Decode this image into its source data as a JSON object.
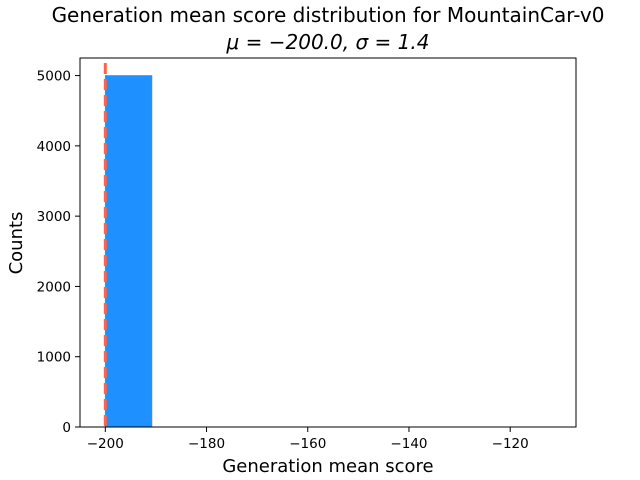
{
  "chart_data": {
    "type": "bar",
    "title": "Generation mean score distribution for MountainCar-v0",
    "subtitle": "μ = −200.0, σ = 1.4",
    "xlabel": "Generation mean score",
    "ylabel": "Counts",
    "xlim": [
      -205,
      -107
    ],
    "ylim": [
      0,
      5250
    ],
    "x_ticks": [
      -200,
      -180,
      -160,
      -140,
      -120
    ],
    "x_tick_labels": [
      "−200",
      "−180",
      "−160",
      "−140",
      "−120"
    ],
    "y_ticks": [
      0,
      1000,
      2000,
      3000,
      4000,
      5000
    ],
    "y_tick_labels": [
      "0",
      "1000",
      "2000",
      "3000",
      "4000",
      "5000"
    ],
    "bins": [
      {
        "start": -200,
        "end": -190.8,
        "count": 5000
      },
      {
        "start": -190.8,
        "end": -181.6,
        "count": 0
      },
      {
        "start": -181.6,
        "end": -172.4,
        "count": 0
      },
      {
        "start": -172.4,
        "end": -163.2,
        "count": 0
      },
      {
        "start": -163.2,
        "end": -154.0,
        "count": 0
      },
      {
        "start": -154.0,
        "end": -144.8,
        "count": 0
      },
      {
        "start": -144.8,
        "end": -135.6,
        "count": 0
      },
      {
        "start": -135.6,
        "end": -126.4,
        "count": 0
      },
      {
        "start": -126.4,
        "end": -117.2,
        "count": 0
      },
      {
        "start": -117.2,
        "end": -108.0,
        "count": 1
      }
    ],
    "mean_line": -200.0,
    "bar_color": "#1e90ff",
    "mean_line_color": "#ff6347",
    "grid": false
  }
}
